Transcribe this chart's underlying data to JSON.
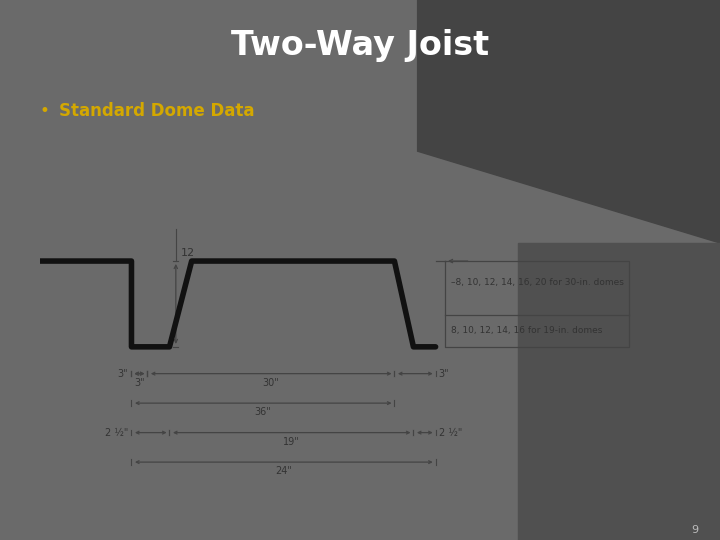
{
  "title": "Two-Way Joist",
  "bullet_text": "Standard Dome Data",
  "title_color": "#ffffff",
  "bullet_color": "#d4a800",
  "bullet_dot_color": "#d4a800",
  "bg_color_main": "#6a6a6a",
  "bg_color_dark": "#3a3a3a",
  "slide_num": "9",
  "diagram": {
    "box_border": "#1a1a6e",
    "profile_color": "#111111",
    "profile_lw": 4.0,
    "dim_color": "#444444",
    "dim_lw": 0.9,
    "text_color": "#333333",
    "dim_label_12": "12",
    "dim_label_30w": "30\"",
    "dim_label_36": "36\"",
    "dim_label_3left": "3\"",
    "dim_label_3right": "3\"",
    "dim_label_19w": "19\"",
    "dim_label_24": "24\"",
    "dim_label_2half_left": "2 ½\"",
    "dim_label_2half_right": "2 ½\"",
    "label_30dome": "–8, 10, 12, 14, 16, 20 for 30-in. domes",
    "label_19dome": "8, 10, 12, 14, 16 for 19-in. domes"
  }
}
